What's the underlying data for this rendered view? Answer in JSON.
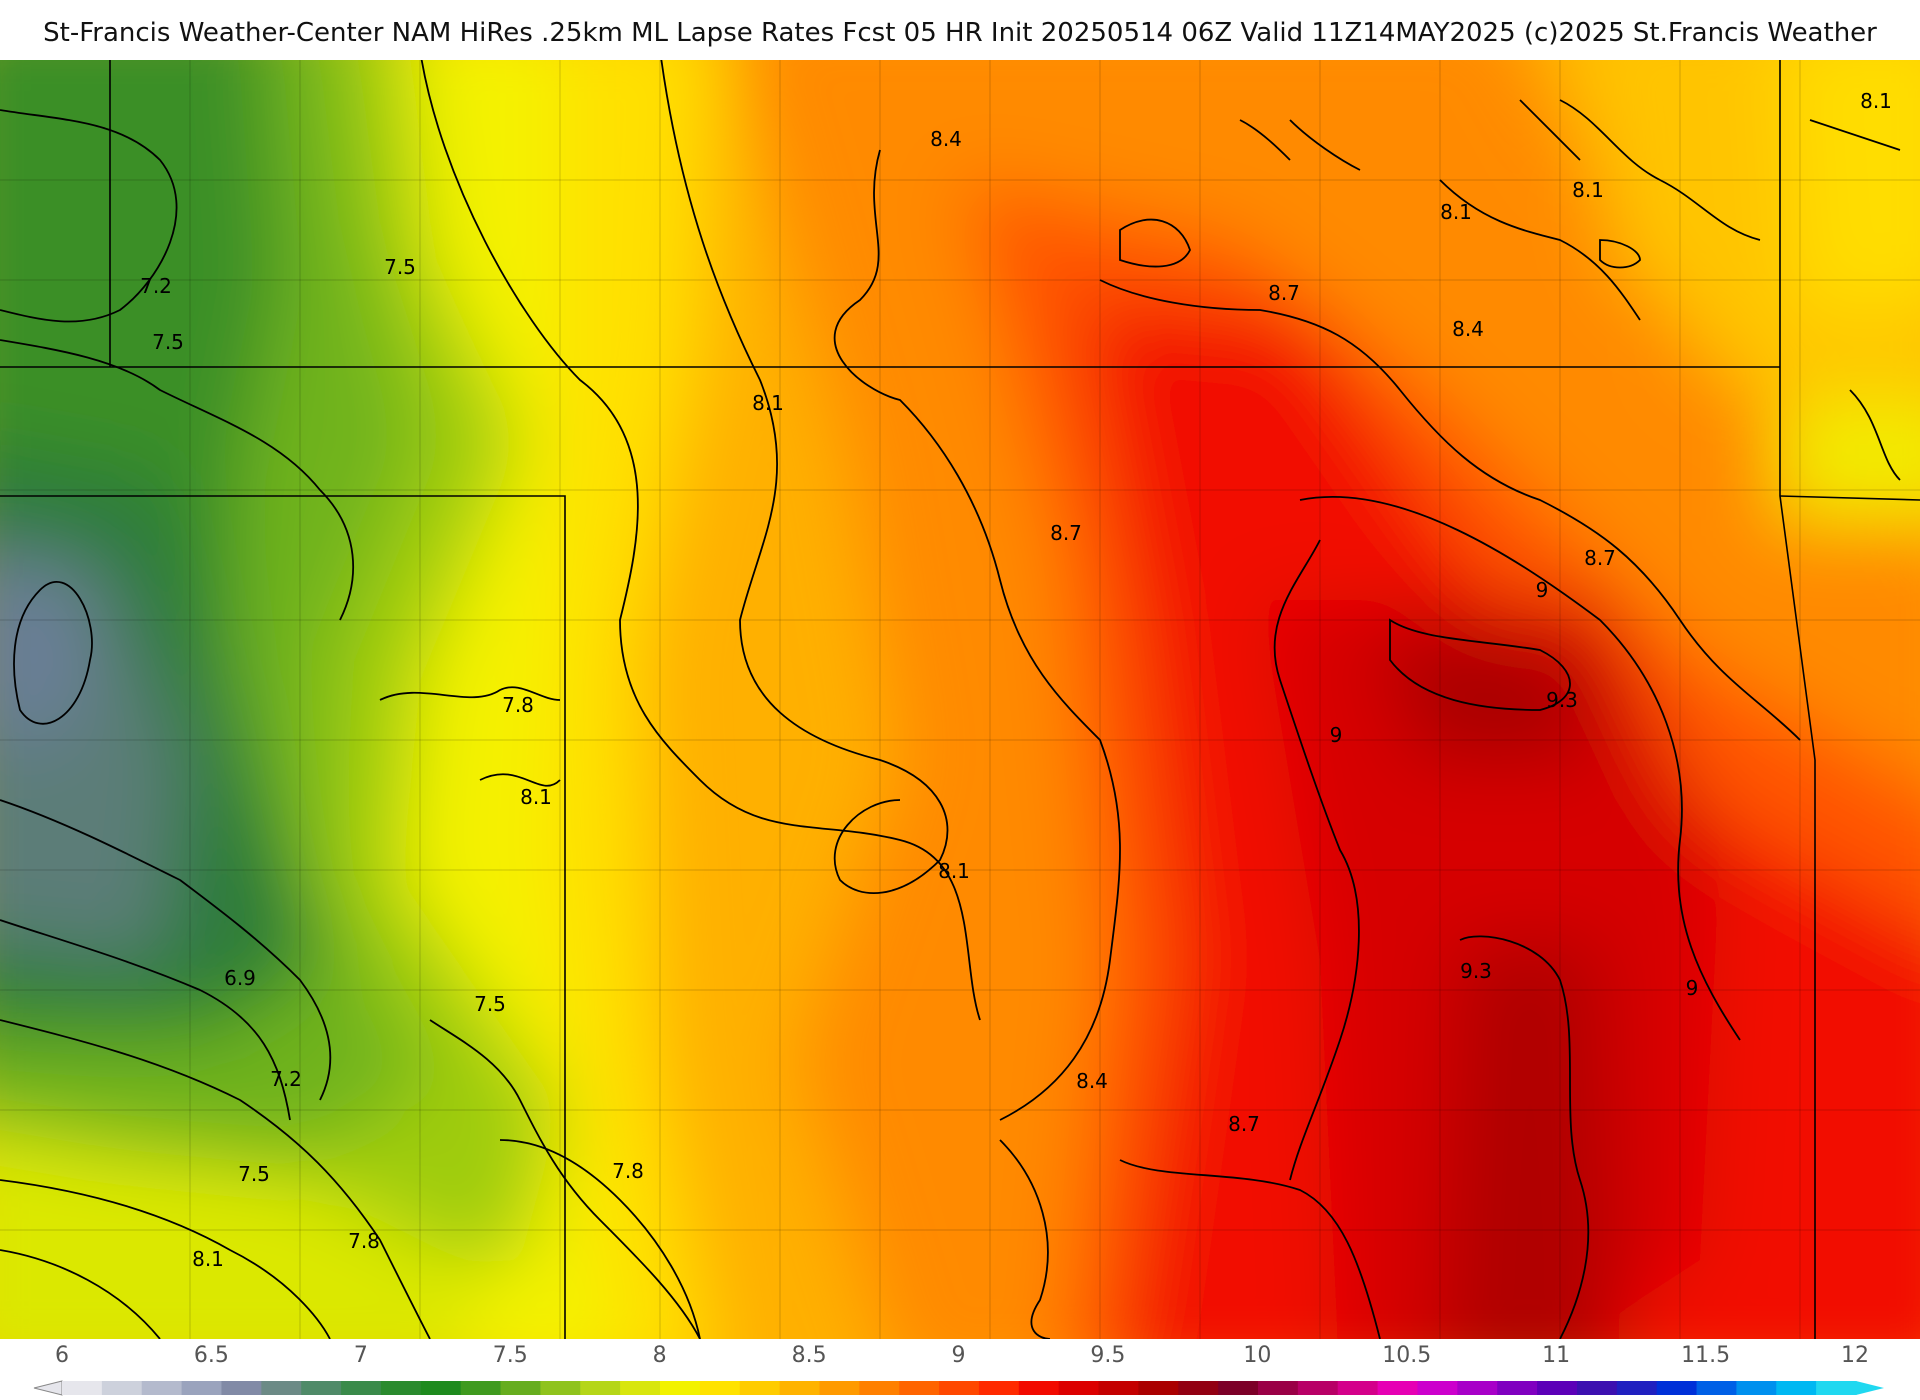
{
  "header": {
    "title": "St-Francis Weather-Center NAM HiRes .25km ML Lapse Rates  Fcst 05 HR Init 20250514 06Z  Valid 11Z14MAY2025    (c)2025 St.Francis Weather"
  },
  "map": {
    "contour_labels": [
      {
        "id": "c1",
        "text": "8.4"
      },
      {
        "id": "c2",
        "text": "8.1"
      },
      {
        "id": "c3",
        "text": "8.1"
      },
      {
        "id": "c4",
        "text": "8.1"
      },
      {
        "id": "c5",
        "text": "7.2"
      },
      {
        "id": "c6",
        "text": "7.5"
      },
      {
        "id": "c7",
        "text": "7.5"
      },
      {
        "id": "c8",
        "text": "8.7"
      },
      {
        "id": "c9",
        "text": "8.4"
      },
      {
        "id": "c10",
        "text": "8.1"
      },
      {
        "id": "c11",
        "text": "8.7"
      },
      {
        "id": "c12",
        "text": "8.7"
      },
      {
        "id": "c13",
        "text": "9"
      },
      {
        "id": "c14",
        "text": "9.3"
      },
      {
        "id": "c15",
        "text": "9"
      },
      {
        "id": "c16",
        "text": "7.8"
      },
      {
        "id": "c17",
        "text": "8.1"
      },
      {
        "id": "c18",
        "text": "8.1"
      },
      {
        "id": "c19",
        "text": "6.9"
      },
      {
        "id": "c20",
        "text": "7.5"
      },
      {
        "id": "c21",
        "text": "9.3"
      },
      {
        "id": "c22",
        "text": "9"
      },
      {
        "id": "c23",
        "text": "7.2"
      },
      {
        "id": "c24",
        "text": "8.4"
      },
      {
        "id": "c25",
        "text": "8.7"
      },
      {
        "id": "c26",
        "text": "7.5"
      },
      {
        "id": "c27",
        "text": "7.8"
      },
      {
        "id": "c28",
        "text": "7.8"
      },
      {
        "id": "c29",
        "text": "8.1"
      }
    ]
  },
  "colorbar": {
    "ticks": [
      "6",
      "6.5",
      "7",
      "7.5",
      "8",
      "8.5",
      "9",
      "9.5",
      "10",
      "10.5",
      "11",
      "11.5",
      "12"
    ],
    "range": [
      6,
      12
    ],
    "colors": [
      "#e6e6ec",
      "#cdd1dc",
      "#b4bacd",
      "#9aa3bd",
      "#818aa6",
      "#6c8a86",
      "#4f8a68",
      "#3a8a4a",
      "#2a8a2e",
      "#1e8a1e",
      "#3f9a1f",
      "#66ad1f",
      "#8fc31d",
      "#b5d618",
      "#d8e60e",
      "#f2f200",
      "#ffe200",
      "#ffcc00",
      "#ffb300",
      "#ff9a00",
      "#ff8000",
      "#ff6400",
      "#ff4800",
      "#ff2a00",
      "#f20a00",
      "#dc0000",
      "#c40000",
      "#aa0000",
      "#920012",
      "#7c0028",
      "#9a0046",
      "#b80066",
      "#d4008a",
      "#e600b4",
      "#cc00cc",
      "#a800c8",
      "#8000c0",
      "#5c00b8",
      "#3c10b0",
      "#2020c0",
      "#0030d8",
      "#0060e6",
      "#0090ee",
      "#00b8f2",
      "#20d8f0"
    ]
  }
}
